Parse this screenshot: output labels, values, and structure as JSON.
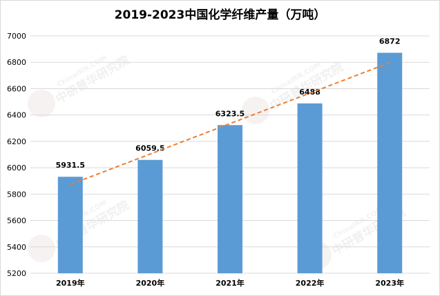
{
  "chart_data": {
    "type": "bar",
    "title": "2019-2023中国化学纤维产量（万吨）",
    "categories": [
      "2019年",
      "2020年",
      "2021年",
      "2022年",
      "2023年"
    ],
    "values": [
      5931.5,
      6059.5,
      6323.5,
      6488,
      6872
    ],
    "value_labels": [
      "5931.5",
      "6059.5",
      "6323.5",
      "6488",
      "6872"
    ],
    "ylim": [
      5200,
      7000
    ],
    "yticks": [
      5200,
      5400,
      5600,
      5800,
      6000,
      6200,
      6400,
      6600,
      6800,
      7000
    ],
    "trendline": {
      "type": "linear",
      "style": "dashed"
    },
    "grid": true,
    "legend": "none",
    "colors": {
      "bar": "#5b9bd5",
      "trendline": "#ed7d31",
      "grid": "#d9d9d9"
    }
  },
  "watermark": {
    "text_cn": "中研普华研究院",
    "text_en": "ChinaIRN.COM",
    "logo": "CIRN"
  }
}
